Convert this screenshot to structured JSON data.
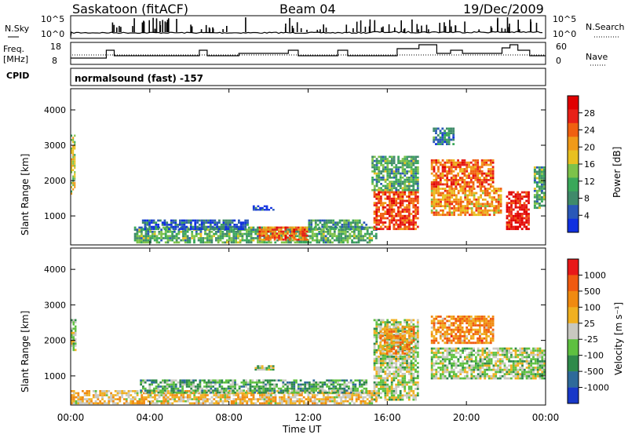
{
  "header": {
    "station": "Saskatoon (fitACF)",
    "beam": "Beam 04",
    "date": "19/Dec/2009"
  },
  "top_panels": {
    "nsky_label": "N.Sky",
    "nsky_ticks": [
      "10^5",
      "10^0"
    ],
    "nsearch_label": "N.Search",
    "nsearch_ticks": [
      "10^5",
      "10^0"
    ],
    "freq_label": "Freq.",
    "freq_unit": "[MHz]",
    "freq_ticks": [
      "18",
      "8"
    ],
    "nave_label": "Nave",
    "nave_ticks": [
      "60",
      "0"
    ],
    "cpid_label": "CPID",
    "cpid_text": "normalsound (fast) -157"
  },
  "chart_data": [
    {
      "type": "heatmap",
      "name": "power",
      "ylabel": "Slant Range [km]",
      "yticks": [
        "4000",
        "3000",
        "2000",
        "1000"
      ],
      "ylim": [
        180,
        4600
      ],
      "colorbar_label": "Power [dB]",
      "colorbar_ticks": [
        "28",
        "24",
        "20",
        "16",
        "12",
        "8",
        "4"
      ],
      "colors": [
        "#1030e0",
        "#2a58b8",
        "#3f8a6a",
        "#3aa85a",
        "#7dc24a",
        "#e8c020",
        "#f09a18",
        "#f06010",
        "#e82018",
        "#e00000"
      ],
      "regions": [
        {
          "t": [
            0.0,
            0.25
          ],
          "r": [
            1600,
            3300
          ],
          "v": 0.5
        },
        {
          "t": [
            3.2,
            15.5
          ],
          "r": [
            220,
            700
          ],
          "v": 0.35
        },
        {
          "t": [
            3.6,
            9.0
          ],
          "r": [
            600,
            900
          ],
          "v": 0.15
        },
        {
          "t": [
            9.5,
            12.0
          ],
          "r": [
            300,
            700
          ],
          "v": 0.75
        },
        {
          "t": [
            9.2,
            10.3
          ],
          "r": [
            1150,
            1300
          ],
          "v": 0.1
        },
        {
          "t": [
            12.0,
            15.0
          ],
          "r": [
            600,
            900
          ],
          "v": 0.3
        },
        {
          "t": [
            15.3,
            17.6
          ],
          "r": [
            600,
            1700
          ],
          "v": 0.8
        },
        {
          "t": [
            15.2,
            17.6
          ],
          "r": [
            1700,
            2700
          ],
          "v": 0.35
        },
        {
          "t": [
            18.2,
            21.4
          ],
          "r": [
            1800,
            2600
          ],
          "v": 0.75
        },
        {
          "t": [
            18.2,
            21.8
          ],
          "r": [
            1000,
            1800
          ],
          "v": 0.65
        },
        {
          "t": [
            22.0,
            23.2
          ],
          "r": [
            600,
            1700
          ],
          "v": 0.9
        },
        {
          "t": [
            23.4,
            24.0
          ],
          "r": [
            1200,
            2400
          ],
          "v": 0.35
        },
        {
          "t": [
            18.3,
            19.4
          ],
          "r": [
            3000,
            3500
          ],
          "v": 0.25
        }
      ]
    },
    {
      "type": "heatmap",
      "name": "velocity",
      "ylabel": "Slant Range [km]",
      "yticks": [
        "4000",
        "3000",
        "2000",
        "1000"
      ],
      "ylim": [
        180,
        4600
      ],
      "colorbar_label": "Velocity [m s⁻¹]",
      "colorbar_ticks": [
        "1000",
        "500",
        "100",
        "25",
        "-25",
        "-100",
        "-500",
        "-1000"
      ],
      "colors": [
        "#1838c8",
        "#2e6a9a",
        "#2f8a4a",
        "#5ec040",
        "#c8c8c0",
        "#f0b020",
        "#f08a10",
        "#f05a10",
        "#e81818"
      ],
      "regions": [
        {
          "t": [
            0.0,
            0.3
          ],
          "r": [
            1700,
            2600
          ],
          "v": 0.45
        },
        {
          "t": [
            0.0,
            15.5
          ],
          "r": [
            200,
            600
          ],
          "v": 0.6
        },
        {
          "t": [
            3.5,
            15.0
          ],
          "r": [
            500,
            900
          ],
          "v": 0.35
        },
        {
          "t": [
            9.3,
            10.3
          ],
          "r": [
            1150,
            1300
          ],
          "v": 0.45
        },
        {
          "t": [
            15.3,
            17.6
          ],
          "r": [
            300,
            2600
          ],
          "v": 0.45
        },
        {
          "t": [
            15.6,
            17.4
          ],
          "r": [
            1600,
            2400
          ],
          "v": 0.7
        },
        {
          "t": [
            18.2,
            21.4
          ],
          "r": [
            1900,
            2700
          ],
          "v": 0.72
        },
        {
          "t": [
            18.2,
            24.0
          ],
          "r": [
            900,
            1800
          ],
          "v": 0.45
        }
      ]
    }
  ],
  "xaxis": {
    "label": "Time UT",
    "ticks": [
      "00:00",
      "04:00",
      "08:00",
      "12:00",
      "16:00",
      "20:00",
      "00:00"
    ],
    "range_hours": [
      0,
      24
    ]
  }
}
